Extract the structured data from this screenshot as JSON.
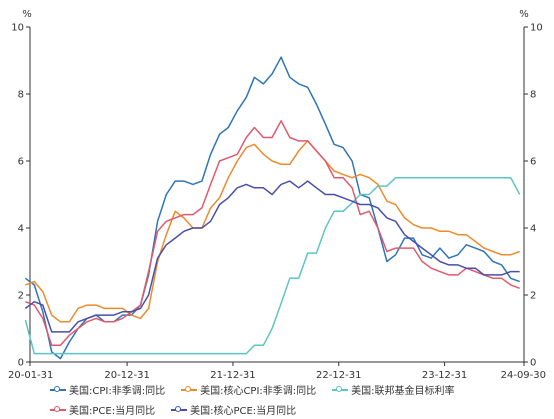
{
  "chart_data": {
    "type": "line",
    "y_unit_left": "%",
    "y_unit_right": "%",
    "ylim": [
      0,
      10
    ],
    "y_ticks": [
      "0",
      "2",
      "4",
      "6",
      "8",
      "10"
    ],
    "x_ticks": [
      "20-01-31",
      "20-12-31",
      "21-12-31",
      "22-12-31",
      "23-12-31",
      "24-09-30"
    ],
    "x_range": [
      "2020-01-31",
      "2024-09-30"
    ],
    "grid": false,
    "legend_position": "bottom",
    "x": [
      "2020-01",
      "2020-02",
      "2020-03",
      "2020-04",
      "2020-05",
      "2020-06",
      "2020-07",
      "2020-08",
      "2020-09",
      "2020-10",
      "2020-11",
      "2020-12",
      "2021-01",
      "2021-02",
      "2021-03",
      "2021-04",
      "2021-05",
      "2021-06",
      "2021-07",
      "2021-08",
      "2021-09",
      "2021-10",
      "2021-11",
      "2021-12",
      "2022-01",
      "2022-02",
      "2022-03",
      "2022-04",
      "2022-05",
      "2022-06",
      "2022-07",
      "2022-08",
      "2022-09",
      "2022-10",
      "2022-11",
      "2022-12",
      "2023-01",
      "2023-02",
      "2023-03",
      "2023-04",
      "2023-05",
      "2023-06",
      "2023-07",
      "2023-08",
      "2023-09",
      "2023-10",
      "2023-11",
      "2023-12",
      "2024-01",
      "2024-02",
      "2024-03",
      "2024-04",
      "2024-05",
      "2024-06",
      "2024-07",
      "2024-08",
      "2024-09"
    ],
    "series": [
      {
        "name": "美国:CPI:非季调:同比",
        "color": "#2e75b6",
        "values": [
          2.5,
          2.3,
          1.5,
          0.3,
          0.1,
          0.6,
          1.0,
          1.3,
          1.4,
          1.2,
          1.2,
          1.4,
          1.4,
          1.7,
          2.6,
          4.2,
          5.0,
          5.4,
          5.4,
          5.3,
          5.4,
          6.2,
          6.8,
          7.0,
          7.5,
          7.9,
          8.5,
          8.3,
          8.6,
          9.1,
          8.5,
          8.3,
          8.2,
          7.7,
          7.1,
          6.5,
          6.4,
          6.0,
          5.0,
          4.9,
          4.0,
          3.0,
          3.2,
          3.7,
          3.7,
          3.2,
          3.1,
          3.4,
          3.1,
          3.2,
          3.5,
          3.4,
          3.3,
          3.0,
          2.9,
          2.5,
          2.4
        ]
      },
      {
        "name": "美国:核心CPI:非季调:同比",
        "color": "#ed8b2c",
        "values": [
          2.3,
          2.4,
          2.1,
          1.4,
          1.2,
          1.2,
          1.6,
          1.7,
          1.7,
          1.6,
          1.6,
          1.6,
          1.4,
          1.3,
          1.6,
          3.0,
          3.8,
          4.5,
          4.3,
          4.0,
          4.0,
          4.6,
          4.9,
          5.5,
          6.0,
          6.4,
          6.5,
          6.2,
          6.0,
          5.9,
          5.9,
          6.3,
          6.6,
          6.3,
          6.0,
          5.7,
          5.6,
          5.5,
          5.6,
          5.5,
          5.3,
          4.8,
          4.7,
          4.3,
          4.1,
          4.0,
          4.0,
          3.9,
          3.9,
          3.8,
          3.8,
          3.6,
          3.4,
          3.3,
          3.2,
          3.2,
          3.3
        ]
      },
      {
        "name": "美国:联邦基金目标利率",
        "color": "#5ec5c5",
        "values": [
          1.25,
          0.25,
          0.25,
          0.25,
          0.25,
          0.25,
          0.25,
          0.25,
          0.25,
          0.25,
          0.25,
          0.25,
          0.25,
          0.25,
          0.25,
          0.25,
          0.25,
          0.25,
          0.25,
          0.25,
          0.25,
          0.25,
          0.25,
          0.25,
          0.25,
          0.25,
          0.5,
          0.5,
          1.0,
          1.75,
          2.5,
          2.5,
          3.25,
          3.25,
          4.0,
          4.5,
          4.5,
          4.75,
          5.0,
          5.0,
          5.25,
          5.25,
          5.5,
          5.5,
          5.5,
          5.5,
          5.5,
          5.5,
          5.5,
          5.5,
          5.5,
          5.5,
          5.5,
          5.5,
          5.5,
          5.5,
          5.0
        ]
      },
      {
        "name": "美国:PCE:当月同比",
        "color": "#e05a6d",
        "values": [
          1.8,
          1.7,
          1.3,
          0.5,
          0.5,
          0.8,
          1.0,
          1.2,
          1.3,
          1.2,
          1.2,
          1.3,
          1.5,
          1.7,
          2.7,
          3.9,
          4.2,
          4.3,
          4.4,
          4.4,
          4.6,
          5.3,
          6.0,
          6.1,
          6.2,
          6.7,
          7.0,
          6.7,
          6.7,
          7.2,
          6.7,
          6.6,
          6.6,
          6.3,
          6.0,
          5.5,
          5.5,
          5.2,
          4.4,
          4.5,
          4.0,
          3.3,
          3.4,
          3.4,
          3.4,
          3.0,
          2.8,
          2.7,
          2.6,
          2.6,
          2.8,
          2.7,
          2.6,
          2.5,
          2.5,
          2.3,
          2.2
        ]
      },
      {
        "name": "美国:核心PCE:当月同比",
        "color": "#4b4fa8",
        "values": [
          1.6,
          1.8,
          1.7,
          0.9,
          0.9,
          0.9,
          1.2,
          1.3,
          1.4,
          1.4,
          1.4,
          1.5,
          1.5,
          1.6,
          2.0,
          3.1,
          3.5,
          3.7,
          3.9,
          4.0,
          4.0,
          4.2,
          4.7,
          4.9,
          5.2,
          5.3,
          5.2,
          5.2,
          5.0,
          5.3,
          5.4,
          5.2,
          5.4,
          5.2,
          5.0,
          5.0,
          4.9,
          4.8,
          4.7,
          4.7,
          4.6,
          4.3,
          4.2,
          3.8,
          3.6,
          3.4,
          3.2,
          3.0,
          2.9,
          2.9,
          2.8,
          2.8,
          2.6,
          2.6,
          2.6,
          2.7,
          2.7
        ]
      }
    ]
  }
}
